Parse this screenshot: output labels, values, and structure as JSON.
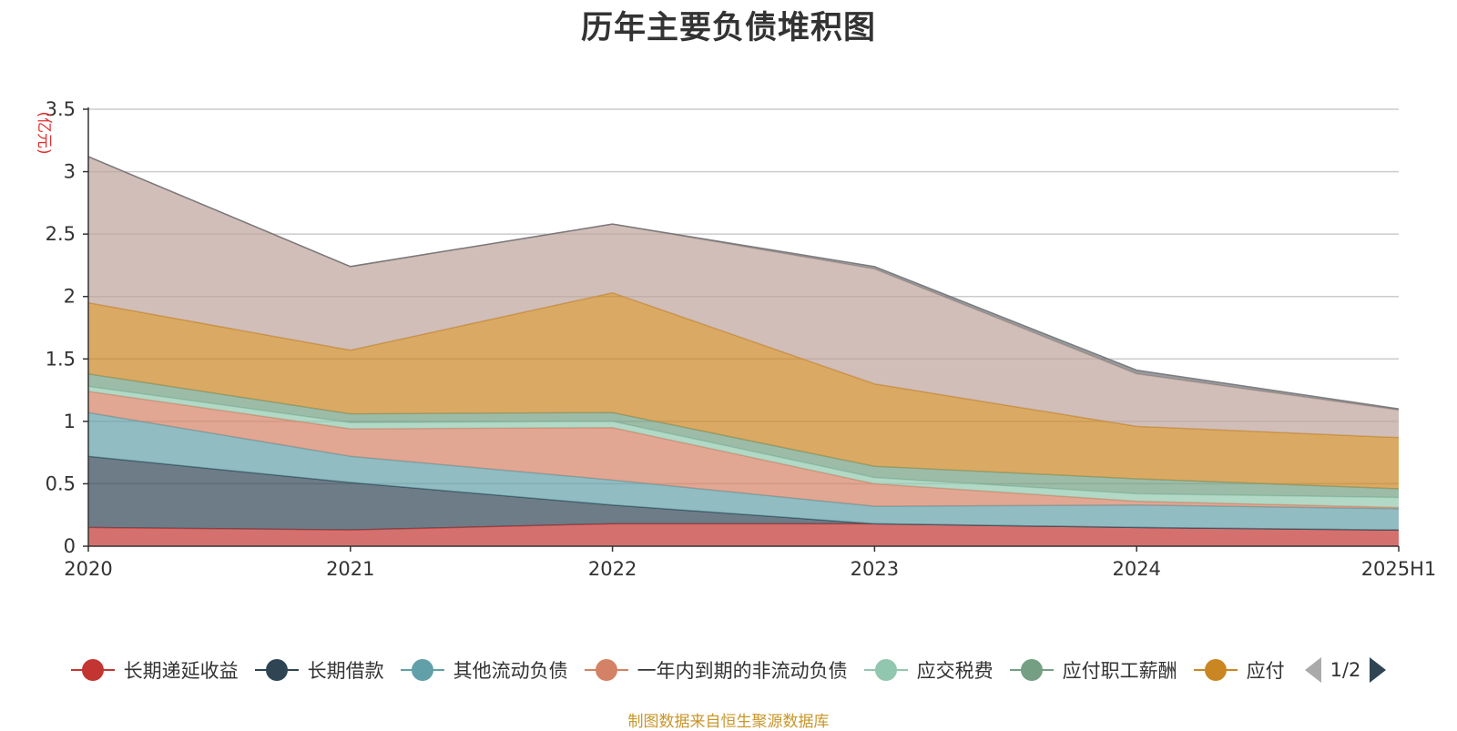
{
  "chart_data": {
    "type": "area",
    "stacked": true,
    "title": "历年主要负债堆积图",
    "y_unit": "(亿元)",
    "ylim": [
      0,
      3.5
    ],
    "y_ticks": [
      "0",
      "0.5",
      "1",
      "1.5",
      "2",
      "2.5",
      "3",
      "3.5"
    ],
    "categories": [
      "2020",
      "2021",
      "2022",
      "2023",
      "2024",
      "2025H1"
    ],
    "grid": true,
    "legend_position": "bottom",
    "series": [
      {
        "name": "长期递延收益",
        "color": "#c23531",
        "values": [
          0.15,
          0.13,
          0.18,
          0.18,
          0.15,
          0.13
        ]
      },
      {
        "name": "长期借款",
        "color": "#2f4554",
        "values": [
          0.57,
          0.38,
          0.15,
          0.0,
          0.0,
          0.0
        ]
      },
      {
        "name": "其他流动负债",
        "color": "#61a0a8",
        "values": [
          0.35,
          0.21,
          0.2,
          0.14,
          0.18,
          0.17
        ]
      },
      {
        "name": "一年内到期的非流动负债",
        "color": "#d48265",
        "values": [
          0.17,
          0.22,
          0.42,
          0.18,
          0.03,
          0.01
        ]
      },
      {
        "name": "应交税费",
        "color": "#91c7ae",
        "values": [
          0.04,
          0.05,
          0.05,
          0.05,
          0.06,
          0.08
        ]
      },
      {
        "name": "应付职工薪酬",
        "color": "#749f83",
        "values": [
          0.1,
          0.07,
          0.07,
          0.09,
          0.12,
          0.07
        ]
      },
      {
        "name": "应付",
        "color": "#ca8622",
        "values": [
          0.57,
          0.51,
          0.96,
          0.66,
          0.42,
          0.41
        ]
      },
      {
        "color": "#bda29a",
        "values": [
          1.17,
          0.67,
          0.55,
          0.92,
          0.42,
          0.22
        ]
      },
      {
        "color": "#6e7074",
        "values": [
          0.0,
          0.0,
          0.0,
          0.02,
          0.03,
          0.01
        ]
      }
    ]
  },
  "legend": {
    "page_indicator": "1/2"
  },
  "source_note": "制图数据来自恒生聚源数据库"
}
